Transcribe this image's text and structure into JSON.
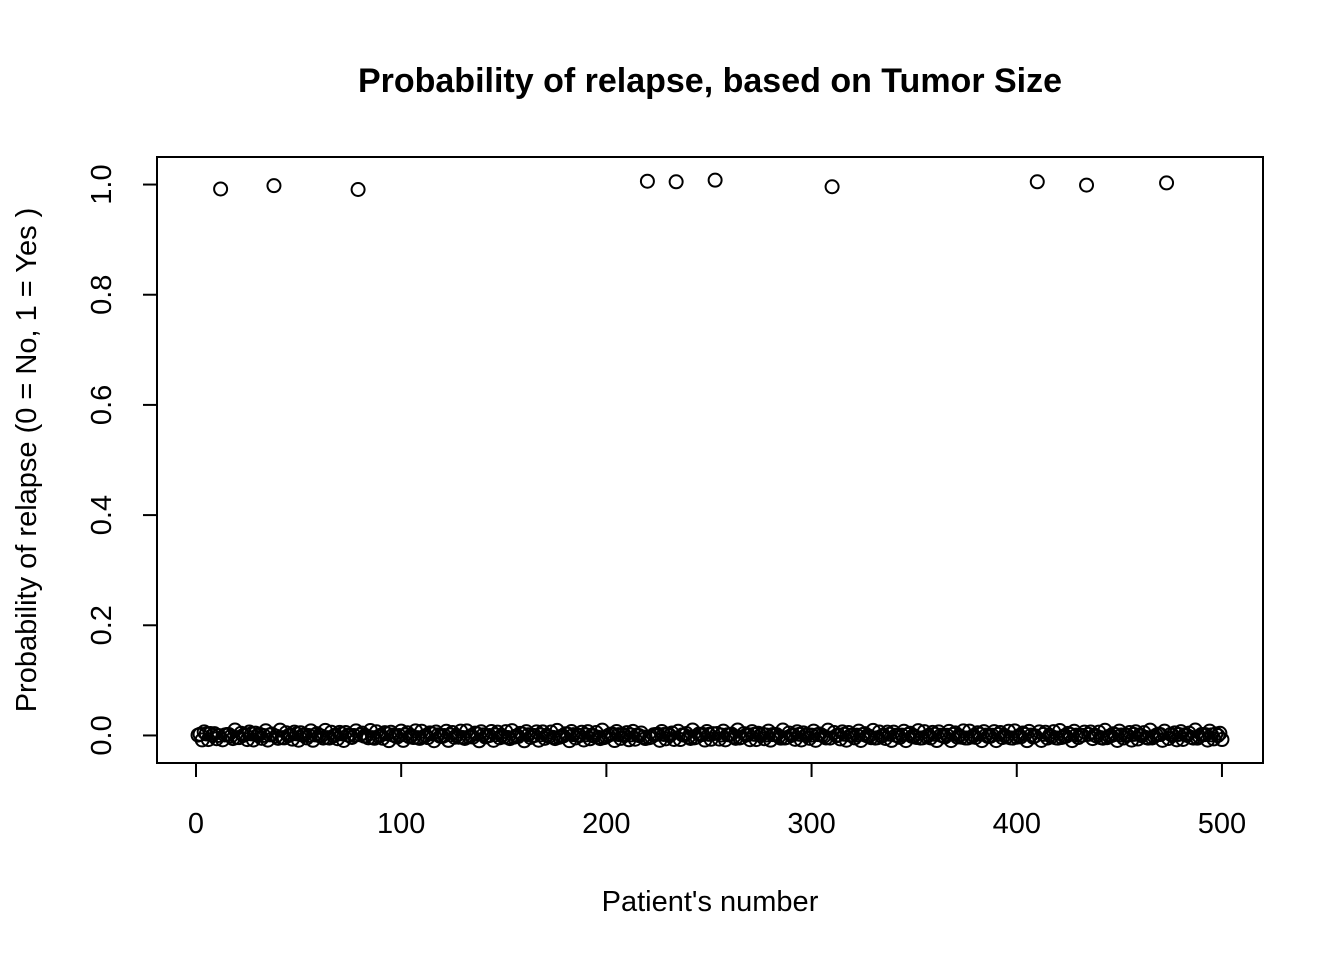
{
  "chart_data": {
    "type": "scatter",
    "title": "Probability of relapse, based on Tumor Size",
    "xlabel": "Patient's number",
    "ylabel": "Probability of relapse (0 = No,    1 = Yes )",
    "xlim": [
      -19,
      520
    ],
    "ylim": [
      -0.05,
      1.05
    ],
    "x_ticks": [
      0,
      100,
      200,
      300,
      400,
      500
    ],
    "y_ticks": [
      0.0,
      0.2,
      0.4,
      0.6,
      0.8,
      1.0
    ],
    "x_tick_labels": [
      "0",
      "100",
      "200",
      "300",
      "400",
      "500"
    ],
    "y_tick_labels": [
      "0.0",
      "0.2",
      "0.4",
      "0.6",
      "0.8",
      "1.0"
    ],
    "grid": false,
    "marker": "open-circle",
    "series": [
      {
        "points_y_one": {
          "x": [
            12,
            38,
            79,
            220,
            234,
            253,
            310,
            410,
            434,
            473
          ],
          "y": [
            0.992,
            0.998,
            0.991,
            1.006,
            1.005,
            1.008,
            0.996,
            1.005,
            0.999,
            1.003
          ]
        },
        "points_y_zero": {
          "x_start": 1,
          "x_end": 500,
          "y": 0.0,
          "jitter": 0.01,
          "excluded_x": [
            12,
            38,
            79,
            220,
            234,
            253,
            310,
            410,
            434,
            473
          ]
        }
      }
    ]
  }
}
